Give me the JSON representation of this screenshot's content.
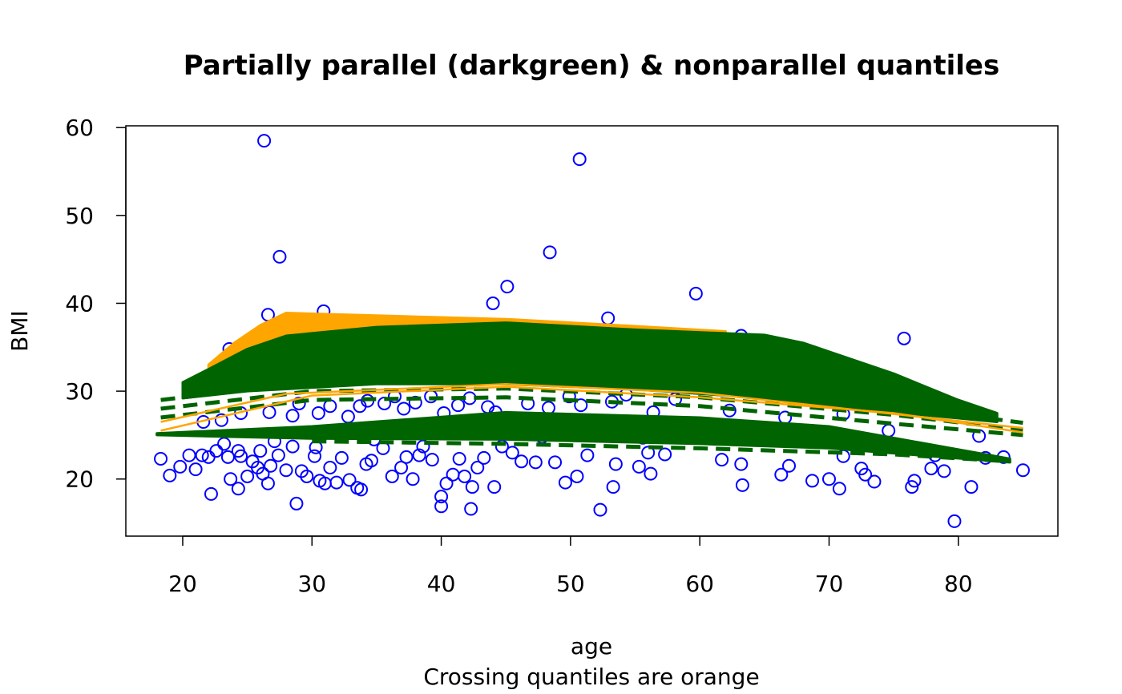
{
  "chart_data": {
    "type": "scatter",
    "title": "Partially parallel (darkgreen) & nonparallel quantiles",
    "xlabel": "age",
    "subtitle": "Crossing quantiles are orange",
    "ylabel": "BMI",
    "xlim": [
      15.6,
      87.7
    ],
    "ylim": [
      13.5,
      60.2
    ],
    "xticks": [
      20,
      30,
      40,
      50,
      60,
      70,
      80
    ],
    "yticks": [
      20,
      30,
      40,
      50,
      60
    ],
    "grid": false,
    "colors": {
      "points": "#0000ff",
      "parallel": "#006400",
      "nonparallel": "#ffa500",
      "axis": "#000000"
    },
    "points": [
      [
        26.3,
        58.5
      ],
      [
        50.7,
        56.4
      ],
      [
        27.5,
        45.3
      ],
      [
        48.4,
        45.8
      ],
      [
        45.1,
        41.9
      ],
      [
        44,
        40
      ],
      [
        59.7,
        41.1
      ],
      [
        52.9,
        38.3
      ],
      [
        26.6,
        38.7
      ],
      [
        30.9,
        39.1
      ],
      [
        75.8,
        36
      ],
      [
        63.2,
        36.3
      ],
      [
        23.6,
        34.8
      ],
      [
        18.3,
        22.3
      ],
      [
        19,
        20.4
      ],
      [
        19.8,
        21.4
      ],
      [
        20.5,
        22.7
      ],
      [
        21,
        21.1
      ],
      [
        21.5,
        22.7
      ],
      [
        22,
        22.5
      ],
      [
        22.2,
        18.3
      ],
      [
        22.6,
        23.2
      ],
      [
        23.2,
        24
      ],
      [
        23.5,
        22.5
      ],
      [
        23.7,
        20
      ],
      [
        24.3,
        18.9
      ],
      [
        24.5,
        22.6
      ],
      [
        25,
        20.3
      ],
      [
        25.4,
        22
      ],
      [
        25.8,
        21.3
      ],
      [
        26.2,
        20.6
      ],
      [
        26.6,
        19.5
      ],
      [
        26.8,
        21.5
      ],
      [
        27.4,
        22.7
      ],
      [
        28,
        21
      ],
      [
        28.5,
        23.7
      ],
      [
        28.8,
        17.2
      ],
      [
        29.2,
        20.9
      ],
      [
        29.6,
        20.3
      ],
      [
        30.2,
        22.6
      ],
      [
        30.6,
        19.8
      ],
      [
        31,
        19.5
      ],
      [
        31.4,
        21.3
      ],
      [
        31.9,
        19.6
      ],
      [
        32.3,
        22.4
      ],
      [
        32.9,
        19.9
      ],
      [
        33.5,
        19
      ],
      [
        33.8,
        18.8
      ],
      [
        34.2,
        21.7
      ],
      [
        34.6,
        22.1
      ],
      [
        35.5,
        23.5
      ],
      [
        36.2,
        20.3
      ],
      [
        36.9,
        21.3
      ],
      [
        37.3,
        22.5
      ],
      [
        37.8,
        20
      ],
      [
        38.3,
        22.7
      ],
      [
        39.3,
        22.2
      ],
      [
        40,
        18
      ],
      [
        40,
        16.9
      ],
      [
        40.4,
        19.5
      ],
      [
        40.9,
        20.5
      ],
      [
        41.4,
        22.3
      ],
      [
        41.8,
        20.3
      ],
      [
        42.3,
        16.6
      ],
      [
        42.4,
        19.1
      ],
      [
        42.8,
        21.3
      ],
      [
        43.3,
        22.4
      ],
      [
        44.1,
        19.1
      ],
      [
        44.7,
        23.7
      ],
      [
        45.5,
        23
      ],
      [
        46.2,
        22
      ],
      [
        47.3,
        21.9
      ],
      [
        48.8,
        21.9
      ],
      [
        49.6,
        19.6
      ],
      [
        50.5,
        20.3
      ],
      [
        51.3,
        22.7
      ],
      [
        52.3,
        16.5
      ],
      [
        53.3,
        19.1
      ],
      [
        53.5,
        21.7
      ],
      [
        55.3,
        21.4
      ],
      [
        56.2,
        20.6
      ],
      [
        56,
        23
      ],
      [
        57.3,
        22.8
      ],
      [
        61.7,
        22.2
      ],
      [
        63.3,
        19.3
      ],
      [
        63.2,
        21.7
      ],
      [
        66.3,
        20.5
      ],
      [
        66.9,
        21.5
      ],
      [
        68.7,
        19.8
      ],
      [
        70,
        20
      ],
      [
        70.8,
        18.9
      ],
      [
        71.1,
        22.6
      ],
      [
        72.5,
        21.2
      ],
      [
        72.8,
        20.5
      ],
      [
        73.5,
        19.7
      ],
      [
        76.4,
        19.1
      ],
      [
        76.6,
        19.8
      ],
      [
        77.9,
        21.2
      ],
      [
        78.9,
        20.9
      ],
      [
        79.7,
        15.2
      ],
      [
        81,
        19.1
      ],
      [
        81.6,
        24.9
      ],
      [
        82.1,
        22.4
      ],
      [
        83.5,
        22.5
      ],
      [
        85,
        21
      ],
      [
        74.6,
        25.5
      ],
      [
        78.2,
        22.7
      ],
      [
        21.6,
        26.5
      ],
      [
        23,
        26.7
      ],
      [
        24.5,
        27.5
      ],
      [
        26.7,
        27.6
      ],
      [
        28.5,
        27.2
      ],
      [
        29,
        28.6
      ],
      [
        30.5,
        27.5
      ],
      [
        31.4,
        28.3
      ],
      [
        32.8,
        27.1
      ],
      [
        33.7,
        28.3
      ],
      [
        34.3,
        28.9
      ],
      [
        35.6,
        28.6
      ],
      [
        36.4,
        29.4
      ],
      [
        37.1,
        28
      ],
      [
        38,
        28.7
      ],
      [
        39.2,
        29.4
      ],
      [
        40.2,
        27.5
      ],
      [
        41.3,
        28.4
      ],
      [
        42.2,
        29.2
      ],
      [
        43.6,
        28.2
      ],
      [
        44.2,
        27.6
      ],
      [
        46.7,
        28.6
      ],
      [
        48.3,
        28.1
      ],
      [
        49.9,
        29.4
      ],
      [
        50.8,
        28.4
      ],
      [
        53.2,
        28.8
      ],
      [
        54.3,
        29.6
      ],
      [
        56.4,
        27.6
      ],
      [
        58.1,
        29.1
      ],
      [
        62.3,
        27.8
      ],
      [
        66.6,
        27
      ],
      [
        71.1,
        27.4
      ],
      [
        24.3,
        23.2
      ],
      [
        26,
        23.2
      ],
      [
        27.1,
        24.3
      ],
      [
        30.3,
        23.6
      ],
      [
        34.8,
        24.5
      ],
      [
        38.6,
        23.7
      ],
      [
        47.8,
        24.8
      ],
      [
        55.6,
        24.7
      ]
    ],
    "bands": [
      {
        "color": "nonparallel",
        "upper": [
          [
            22,
            33
          ],
          [
            24,
            35.5
          ],
          [
            26,
            37.5
          ],
          [
            28,
            38.9
          ],
          [
            35,
            38.6
          ],
          [
            45,
            38.2
          ],
          [
            55,
            37.4
          ],
          [
            62,
            36.8
          ]
        ],
        "lower": [
          [
            62,
            36
          ],
          [
            45,
            37
          ],
          [
            35,
            36.5
          ],
          [
            28,
            35.5
          ],
          [
            24,
            32.5
          ],
          [
            22,
            31.5
          ]
        ]
      },
      {
        "color": "parallel",
        "upper": [
          [
            20,
            31
          ],
          [
            22,
            32.5
          ],
          [
            25,
            34.8
          ],
          [
            28,
            36.3
          ],
          [
            35,
            37.3
          ],
          [
            45,
            37.8
          ],
          [
            55,
            37
          ],
          [
            65,
            36.4
          ],
          [
            68,
            35.5
          ],
          [
            70,
            34.5
          ],
          [
            75,
            32
          ],
          [
            80,
            29
          ],
          [
            83,
            27.5
          ]
        ],
        "lower": [
          [
            83,
            26.5
          ],
          [
            75,
            27.6
          ],
          [
            65,
            29.2
          ],
          [
            55,
            30.2
          ],
          [
            45,
            30.8
          ],
          [
            35,
            30.8
          ],
          [
            25,
            30
          ],
          [
            20,
            29.2
          ]
        ]
      },
      {
        "color": "parallel",
        "upper": [
          [
            18,
            25.2
          ],
          [
            30,
            26
          ],
          [
            45,
            27.6
          ],
          [
            60,
            27
          ],
          [
            70,
            26
          ],
          [
            84,
            22.3
          ]
        ],
        "lower": [
          [
            84,
            21.9
          ],
          [
            70,
            23.5
          ],
          [
            60,
            24
          ],
          [
            45,
            24.5
          ],
          [
            30,
            24.6
          ],
          [
            18,
            25
          ]
        ]
      }
    ],
    "lines": [
      {
        "color": "parallel",
        "dashed": true,
        "points": [
          [
            18.3,
            29
          ],
          [
            30,
            31
          ],
          [
            45,
            31.3
          ],
          [
            60,
            30.3
          ],
          [
            75,
            28.3
          ],
          [
            85,
            26.4
          ]
        ]
      },
      {
        "color": "parallel",
        "dashed": true,
        "points": [
          [
            18.3,
            28
          ],
          [
            30,
            30
          ],
          [
            45,
            30.3
          ],
          [
            60,
            29.3
          ],
          [
            75,
            27.3
          ],
          [
            85,
            25.6
          ]
        ]
      },
      {
        "color": "parallel",
        "dashed": true,
        "points": [
          [
            18.3,
            27
          ],
          [
            30,
            29
          ],
          [
            45,
            29.3
          ],
          [
            60,
            28.3
          ],
          [
            75,
            26.3
          ],
          [
            85,
            25
          ]
        ]
      },
      {
        "color": "parallel",
        "dashed": true,
        "points": [
          [
            30,
            24.3
          ],
          [
            45,
            24
          ],
          [
            60,
            23.5
          ],
          [
            75,
            22.8
          ],
          [
            84,
            22
          ]
        ]
      },
      {
        "color": "nonparallel",
        "dashed": false,
        "points": [
          [
            18.3,
            25.5
          ],
          [
            30,
            29.5
          ],
          [
            45,
            30.5
          ],
          [
            60,
            29.3
          ],
          [
            75,
            27.5
          ],
          [
            85,
            25.3
          ]
        ]
      },
      {
        "color": "nonparallel",
        "dashed": false,
        "points": [
          [
            18.3,
            26.5
          ],
          [
            28,
            29.7
          ],
          [
            45,
            30.8
          ],
          [
            60,
            29.8
          ],
          [
            85,
            25.8
          ]
        ]
      }
    ]
  }
}
